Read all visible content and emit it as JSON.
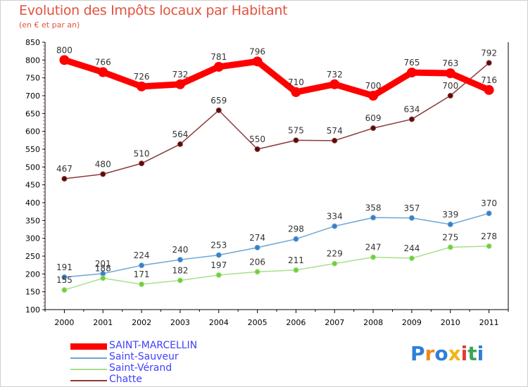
{
  "header": {
    "title": "Evolution des Impôts locaux par Habitant",
    "subtitle": "(en € et par an)"
  },
  "logo": {
    "text": "Proxiti",
    "letters": [
      {
        "char": "P",
        "color": "#2f7fd8"
      },
      {
        "char": "r",
        "color": "#f08a1c"
      },
      {
        "char": "o",
        "color": "#2f7fd8"
      },
      {
        "char": "x",
        "color": "#f2b416"
      },
      {
        "char": "i",
        "color": "#e23b3b"
      },
      {
        "char": "t",
        "color": "#3aa655"
      },
      {
        "char": "i",
        "color": "#2f7fd8"
      }
    ]
  },
  "colors": {
    "title": "#e1523d",
    "axis": "#000000",
    "grid": "#dddddd",
    "legend_text": "#4040ff",
    "value_label": "#333333"
  },
  "chart_data": {
    "type": "line",
    "title": "Evolution des Impôts locaux par Habitant",
    "subtitle": "(en € et par an)",
    "xlabel": "",
    "ylabel": "",
    "ylim": [
      100,
      850
    ],
    "yticks": [
      100,
      150,
      200,
      250,
      300,
      350,
      400,
      450,
      500,
      550,
      600,
      650,
      700,
      750,
      800,
      850
    ],
    "grid": false,
    "legend_position": "bottom-left",
    "x": [
      "2000",
      "2001",
      "2002",
      "2003",
      "2004",
      "2005",
      "2006",
      "2007",
      "2008",
      "2009",
      "2010",
      "2011"
    ],
    "series": [
      {
        "name": "SAINT-MARCELLIN",
        "color": "#ff0000",
        "thick": true,
        "values": [
          800,
          766,
          726,
          732,
          781,
          796,
          710,
          732,
          700,
          765,
          763,
          716
        ]
      },
      {
        "name": "Saint-Sauveur",
        "color": "#6aa6d8",
        "marker": "#3a7fc0",
        "thick": false,
        "values": [
          191,
          201,
          224,
          240,
          253,
          274,
          298,
          334,
          358,
          357,
          339,
          370
        ]
      },
      {
        "name": "Saint-Vérand",
        "color": "#a8e08c",
        "marker": "#6fcf3a",
        "thick": false,
        "values": [
          155,
          188,
          171,
          182,
          197,
          206,
          211,
          229,
          247,
          244,
          275,
          278
        ]
      },
      {
        "name": "Chatte",
        "color": "#8b3a3a",
        "marker": "#5a0a0a",
        "thick": false,
        "values": [
          467,
          480,
          510,
          564,
          659,
          550,
          575,
          574,
          609,
          634,
          700,
          792
        ]
      }
    ]
  }
}
